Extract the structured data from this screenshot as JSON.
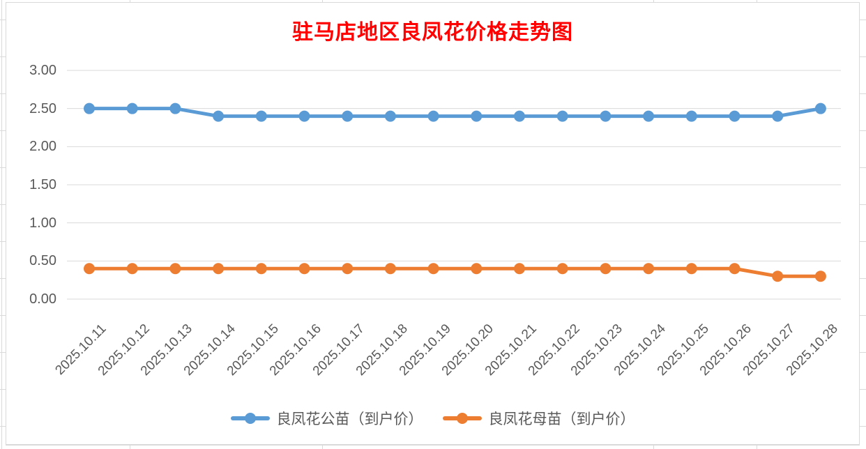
{
  "chart_data": {
    "type": "line",
    "title": "驻马店地区良凤花价格走势图",
    "title_color": "#FF0000",
    "categories": [
      "2025.10.11",
      "2025.10.12",
      "2025.10.13",
      "2025.10.14",
      "2025.10.15",
      "2025.10.16",
      "2025.10.17",
      "2025.10.18",
      "2025.10.19",
      "2025.10.20",
      "2025.10.21",
      "2025.10.22",
      "2025.10.23",
      "2025.10.24",
      "2025.10.25",
      "2025.10.26",
      "2025.10.27",
      "2025.10.28"
    ],
    "series": [
      {
        "name": "良凤花公苗（到户价）",
        "color": "#5B9BD5",
        "values": [
          2.5,
          2.5,
          2.5,
          2.4,
          2.4,
          2.4,
          2.4,
          2.4,
          2.4,
          2.4,
          2.4,
          2.4,
          2.4,
          2.4,
          2.4,
          2.4,
          2.4,
          2.5
        ]
      },
      {
        "name": "良凤花母苗（到户价）",
        "color": "#ED7D31",
        "values": [
          0.4,
          0.4,
          0.4,
          0.4,
          0.4,
          0.4,
          0.4,
          0.4,
          0.4,
          0.4,
          0.4,
          0.4,
          0.4,
          0.4,
          0.4,
          0.4,
          0.3,
          0.3
        ]
      }
    ],
    "xlabel": "",
    "ylabel": "",
    "ylim": [
      0,
      3
    ],
    "yticks": [
      0,
      0.5,
      1,
      1.5,
      2,
      2.5,
      3
    ],
    "ytick_labels": [
      "0.00",
      "0.50",
      "1.00",
      "1.50",
      "2.00",
      "2.50",
      "3.00"
    ],
    "grid": "horizontal",
    "legend_position": "bottom"
  },
  "colors": {
    "gridline": "#D9D9D9",
    "axis_text": "#595959",
    "chart_border": "#D9D9D9",
    "sheet_line": "#D9D9D9"
  }
}
